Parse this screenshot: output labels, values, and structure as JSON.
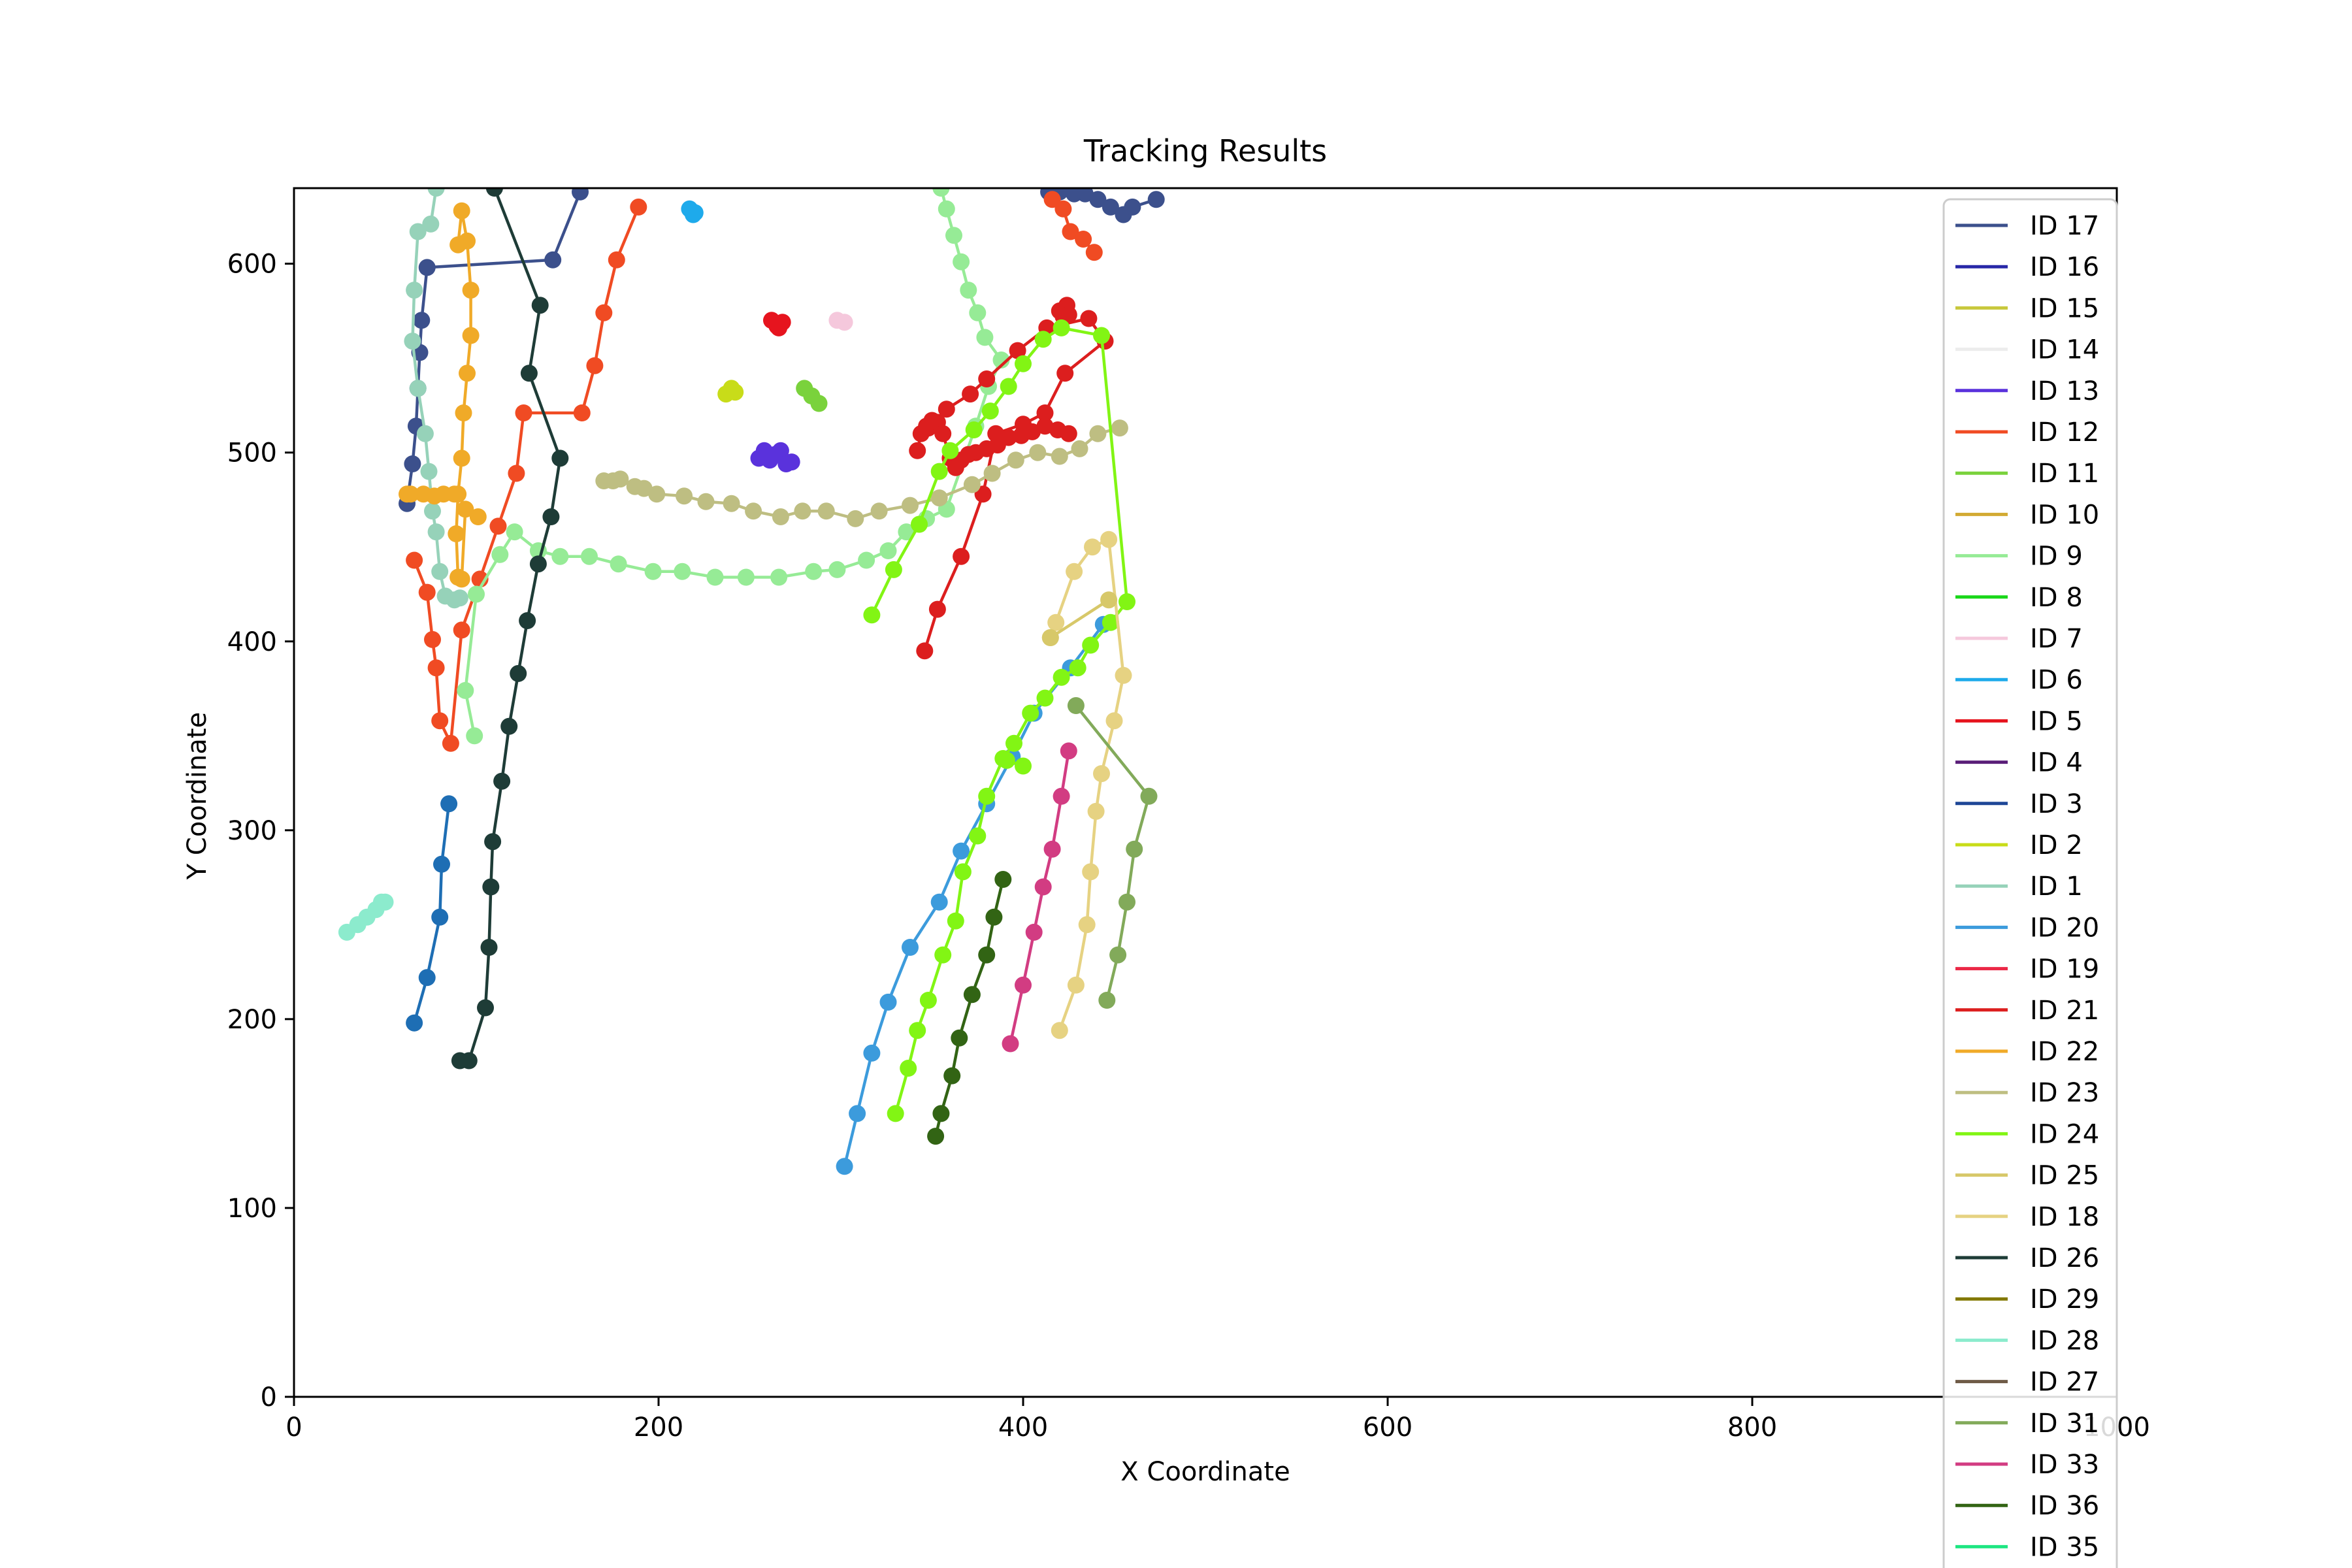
{
  "chart_data": {
    "type": "line",
    "title": "Tracking Results",
    "xlabel": "X Coordinate",
    "ylabel": "Y Coordinate",
    "xlim": [
      0,
      1000
    ],
    "ylim": [
      0,
      640
    ],
    "x_ticks": [
      "0",
      "200",
      "400",
      "600",
      "800",
      "1000"
    ],
    "y_ticks": [
      "0",
      "100",
      "200",
      "300",
      "400",
      "500",
      "600"
    ],
    "legend_placement": "top-right",
    "legend": [
      {
        "label": "ID 17",
        "color": "#3c508c"
      },
      {
        "label": "ID 16",
        "color": "#2828a8"
      },
      {
        "label": "ID 15",
        "color": "#c8c83c"
      },
      {
        "label": "ID 14",
        "color": "#ececec"
      },
      {
        "label": "ID 13",
        "color": "#5a32dc"
      },
      {
        "label": "ID 12",
        "color": "#f04b23"
      },
      {
        "label": "ID 11",
        "color": "#7ad23c"
      },
      {
        "label": "ID 10",
        "color": "#d2aa32"
      },
      {
        "label": "ID 9",
        "color": "#96eb96"
      },
      {
        "label": "ID 8",
        "color": "#19d719"
      },
      {
        "label": "ID 7",
        "color": "#f5c8dc"
      },
      {
        "label": "ID 6",
        "color": "#1eaaeb"
      },
      {
        "label": "ID 5",
        "color": "#e6141e"
      },
      {
        "label": "ID 4",
        "color": "#5a1e78"
      },
      {
        "label": "ID 3",
        "color": "#1e4696"
      },
      {
        "label": "ID 2",
        "color": "#c8dc19"
      },
      {
        "label": "ID 1",
        "color": "#96d2b9"
      },
      {
        "label": "ID 20",
        "color": "#3c9bdc"
      },
      {
        "label": "ID 19",
        "color": "#eb2846"
      },
      {
        "label": "ID 21",
        "color": "#dc1e1e"
      },
      {
        "label": "ID 22",
        "color": "#f0aa28"
      },
      {
        "label": "ID 23",
        "color": "#bebe82"
      },
      {
        "label": "ID 24",
        "color": "#82f514"
      },
      {
        "label": "ID 25",
        "color": "#d7c869"
      },
      {
        "label": "ID 18",
        "color": "#e6d282"
      },
      {
        "label": "ID 26",
        "color": "#1e3c37"
      },
      {
        "label": "ID 29",
        "color": "#827800"
      },
      {
        "label": "ID 28",
        "color": "#8cebcd"
      },
      {
        "label": "ID 27",
        "color": "#6e5a46"
      },
      {
        "label": "ID 31",
        "color": "#82aa5a"
      },
      {
        "label": "ID 33",
        "color": "#d23c82"
      },
      {
        "label": "ID 36",
        "color": "#326414"
      },
      {
        "label": "ID 35",
        "color": "#1ee682"
      }
    ],
    "series": [
      {
        "name": "ID 17",
        "color": "#3c508c",
        "x": [
          62,
          65,
          67,
          68,
          69,
          70,
          73,
          142,
          157
        ],
        "y": [
          473,
          494,
          514,
          534,
          553,
          570,
          598,
          602,
          638
        ]
      },
      {
        "name": "ID 17",
        "color": "#3c508c",
        "x": [
          414,
          420,
          428,
          434,
          441,
          448,
          455,
          460,
          473
        ],
        "y": [
          638,
          638,
          637,
          637,
          634,
          630,
          626,
          630,
          634
        ]
      },
      {
        "name": "ID 13",
        "color": "#5a32dc",
        "x": [
          255,
          258,
          261,
          264,
          267,
          270,
          273
        ],
        "y": [
          497,
          501,
          496,
          499,
          501,
          494,
          495
        ]
      },
      {
        "name": "ID 12",
        "color": "#f04b23",
        "x": [
          66,
          73,
          76,
          78,
          80,
          86,
          92,
          102,
          112,
          122,
          126,
          158,
          165,
          170,
          177,
          189
        ],
        "y": [
          443,
          426,
          401,
          386,
          358,
          346,
          406,
          433,
          461,
          489,
          521,
          521,
          546,
          574,
          602,
          630
        ]
      },
      {
        "name": "ID 12",
        "color": "#f04b23",
        "x": [
          416,
          422,
          426,
          433,
          439
        ],
        "y": [
          634,
          629,
          617,
          613,
          606
        ]
      },
      {
        "name": "ID 11",
        "color": "#7ad23c",
        "x": [
          280,
          284,
          288
        ],
        "y": [
          534,
          530,
          526
        ]
      },
      {
        "name": "ID 9",
        "color": "#96eb96",
        "x": [
          99,
          94,
          100,
          113,
          121,
          134,
          146,
          162,
          178,
          197,
          213,
          231,
          248,
          266,
          285,
          298,
          314,
          326,
          336,
          347,
          358,
          374,
          381,
          388,
          379,
          375,
          370,
          366,
          362,
          358,
          355
        ],
        "y": [
          350,
          374,
          425,
          446,
          458,
          448,
          445,
          445,
          441,
          437,
          437,
          434,
          434,
          434,
          437,
          438,
          443,
          448,
          458,
          465,
          470,
          514,
          535,
          549,
          561,
          574,
          586,
          601,
          615,
          629,
          640
        ]
      },
      {
        "name": "ID 7",
        "color": "#f5c8dc",
        "x": [
          298,
          302
        ],
        "y": [
          570,
          569
        ]
      },
      {
        "name": "ID 6",
        "color": "#1eaaeb",
        "x": [
          217,
          219,
          220,
          218
        ],
        "y": [
          629,
          626,
          627,
          628
        ]
      },
      {
        "name": "ID 5",
        "color": "#e6141e",
        "x": [
          262,
          265,
          268,
          266
        ],
        "y": [
          570,
          567,
          569,
          566
        ]
      },
      {
        "name": "ID 15",
        "color": "#c8dc19",
        "x": [
          237,
          240,
          242
        ],
        "y": [
          531,
          534,
          532
        ]
      },
      {
        "name": "ID 1",
        "color": "#96d2b9",
        "x": [
          78,
          75,
          68,
          66,
          65,
          68,
          72,
          74,
          76,
          78,
          80,
          83,
          88,
          91
        ],
        "y": [
          640,
          621,
          617,
          586,
          559,
          534,
          510,
          490,
          469,
          458,
          437,
          424,
          422,
          423
        ]
      },
      {
        "name": "ID 20",
        "color": "#3c9bdc",
        "x": [
          302,
          309,
          317,
          326,
          338,
          354,
          366,
          380,
          394,
          406,
          426,
          444
        ],
        "y": [
          122,
          150,
          182,
          209,
          238,
          262,
          289,
          314,
          339,
          362,
          386,
          409
        ]
      },
      {
        "name": "ID 21",
        "color": "#dc1e1e",
        "x": [
          346,
          353,
          366,
          378,
          385,
          400,
          412,
          423,
          445,
          436,
          413,
          397,
          380,
          371,
          358,
          348
        ],
        "y": [
          395,
          417,
          445,
          478,
          510,
          515,
          521,
          542,
          559,
          571,
          566,
          554,
          539,
          531,
          523,
          513
        ]
      },
      {
        "name": "ID 21",
        "color": "#dc1e1e",
        "x": [
          342,
          344,
          347,
          350,
          353,
          356,
          360,
          363,
          366,
          370,
          374,
          380,
          386,
          392,
          399,
          405,
          412,
          419,
          425
        ],
        "y": [
          501,
          510,
          514,
          517,
          516,
          510,
          497,
          492,
          496,
          499,
          500,
          502,
          504,
          508,
          509,
          511,
          514,
          512,
          510
        ]
      },
      {
        "name": "ID 21",
        "color": "#dc1e1e",
        "x": [
          420,
          424,
          425,
          422
        ],
        "y": [
          575,
          578,
          573,
          572
        ]
      },
      {
        "name": "ID 22",
        "color": "#f0aa28",
        "x": [
          90,
          92,
          95,
          97,
          97,
          95,
          93,
          92,
          90,
          89,
          90,
          92,
          94,
          101,
          88,
          82,
          77,
          71,
          62,
          64
        ],
        "y": [
          610,
          628,
          612,
          586,
          562,
          542,
          521,
          497,
          478,
          457,
          434,
          433,
          470,
          466,
          478,
          478,
          477,
          478,
          478,
          478
        ]
      },
      {
        "name": "ID 23",
        "color": "#bebe82",
        "x": [
          170,
          175,
          179,
          187,
          192,
          199,
          214,
          226,
          240,
          252,
          267,
          279,
          292,
          308,
          321,
          338,
          354,
          372,
          383,
          396,
          408,
          420,
          431,
          441,
          453
        ],
        "y": [
          485,
          485,
          486,
          482,
          481,
          478,
          477,
          474,
          473,
          469,
          466,
          469,
          469,
          465,
          469,
          472,
          476,
          483,
          489,
          496,
          500,
          498,
          502,
          510,
          513
        ]
      },
      {
        "name": "ID 24",
        "color": "#82f514",
        "x": [
          317,
          329,
          343,
          354,
          360,
          373,
          382,
          392,
          400,
          411,
          421,
          443,
          457,
          448,
          437,
          430,
          421,
          412,
          404,
          395,
          389,
          380,
          375,
          367,
          363,
          356,
          348,
          342,
          337,
          330
        ],
        "y": [
          414,
          438,
          462,
          490,
          501,
          512,
          522,
          535,
          547,
          560,
          566,
          562,
          421,
          410,
          398,
          386,
          381,
          370,
          362,
          346,
          338,
          318,
          297,
          278,
          252,
          234,
          210,
          194,
          174,
          150
        ]
      },
      {
        "name": "ID 24",
        "color": "#82f514",
        "x": [
          391,
          400
        ],
        "y": [
          337,
          334
        ]
      },
      {
        "name": "ID 18",
        "color": "#e6d282",
        "x": [
          415,
          418,
          428,
          438,
          447,
          455,
          450,
          443,
          440,
          437,
          435,
          429,
          420
        ],
        "y": [
          402,
          410,
          437,
          450,
          454,
          382,
          358,
          330,
          310,
          278,
          250,
          218,
          194
        ]
      },
      {
        "name": "ID 25",
        "color": "#d7c869",
        "x": [
          415,
          447
        ],
        "y": [
          402,
          422
        ]
      },
      {
        "name": "ID 26",
        "color": "#1e3c37",
        "x": [
          110,
          135,
          129,
          146,
          141,
          134,
          128,
          123,
          118,
          114,
          109,
          108,
          107,
          105,
          96,
          91
        ],
        "y": [
          640,
          578,
          542,
          497,
          466,
          441,
          411,
          383,
          355,
          326,
          294,
          270,
          238,
          206,
          178,
          178
        ]
      },
      {
        "name": "ID 28",
        "color": "#8cebcd",
        "x": [
          29,
          35,
          40,
          45,
          48,
          50
        ],
        "y": [
          246,
          250,
          254,
          258,
          262,
          262
        ]
      },
      {
        "name": "ID 31",
        "color": "#82aa5a",
        "x": [
          429,
          469,
          461,
          457,
          452,
          446
        ],
        "y": [
          366,
          318,
          290,
          262,
          234,
          210
        ]
      },
      {
        "name": "ID 33",
        "color": "#d23c82",
        "x": [
          425,
          421,
          416,
          411,
          406,
          400,
          393
        ],
        "y": [
          342,
          318,
          290,
          270,
          246,
          218,
          187
        ]
      },
      {
        "name": "ID 36",
        "color": "#326414",
        "x": [
          389,
          384,
          380,
          372,
          365,
          361,
          355,
          352
        ],
        "y": [
          274,
          254,
          234,
          213,
          190,
          170,
          150,
          138
        ]
      },
      {
        "name": "ID 3",
        "color": "#1e6eb4",
        "x": [
          66,
          73,
          80,
          81,
          85
        ],
        "y": [
          198,
          222,
          254,
          282,
          314
        ]
      }
    ]
  }
}
